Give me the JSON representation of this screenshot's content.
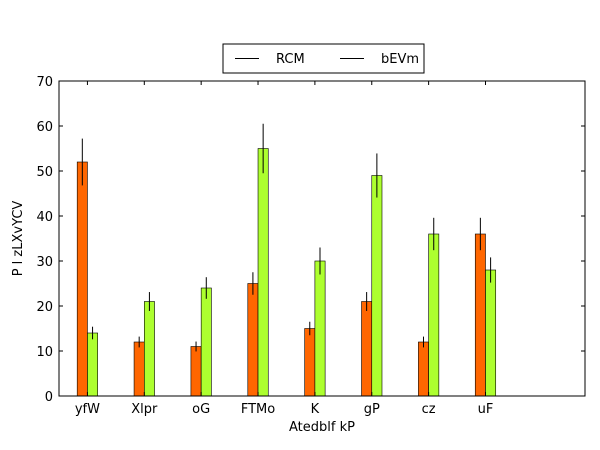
{
  "chart_data": {
    "type": "bar",
    "title": "",
    "xlabel": "Atedblf kP",
    "ylabel": "P l zLXvYCV",
    "ylim": [
      0,
      70
    ],
    "yticks": [
      0,
      10,
      20,
      30,
      40,
      50,
      60,
      70
    ],
    "grid": false,
    "legend_position": "top-center",
    "categories": [
      "yfW",
      "Xlpr",
      "oG",
      "FTMo",
      "K",
      "gP",
      "cz",
      "uF"
    ],
    "series": [
      {
        "name": "RCM",
        "color": "#ff6600",
        "values": [
          52,
          12,
          11,
          25,
          15,
          21,
          12,
          36
        ],
        "errors": [
          5.2,
          1.2,
          1.1,
          2.5,
          1.5,
          2.1,
          1.2,
          3.6
        ]
      },
      {
        "name": "bEVm",
        "color": "#adff2f",
        "values": [
          14,
          21,
          24,
          55,
          30,
          49,
          36,
          28
        ],
        "errors": [
          1.4,
          2.1,
          2.4,
          5.5,
          3.0,
          4.9,
          3.6,
          2.8
        ]
      }
    ]
  }
}
